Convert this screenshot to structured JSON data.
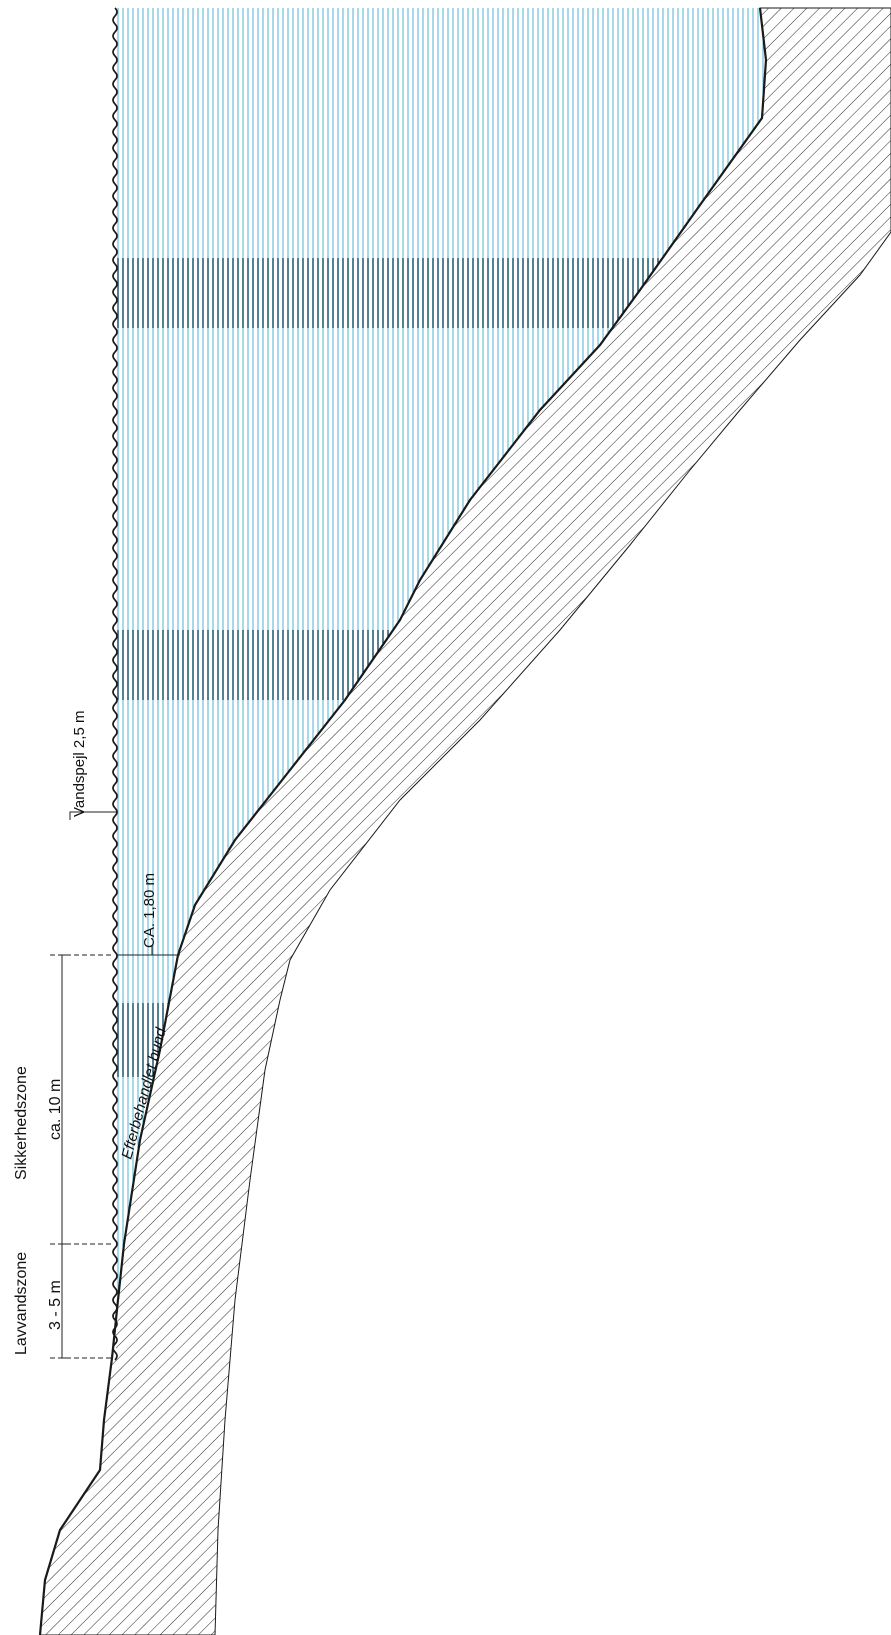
{
  "labels": {
    "water_level": "Vandspejl 2,5 m",
    "depth": "CA. 1,80 m",
    "bottom": "Efterbehandlet bund",
    "safety_zone_name": "Sikkerhedszone",
    "safety_zone_width": "ca. 10 m",
    "shallow_zone_name": "Lavvandszone",
    "shallow_zone_width": "3 - 5 m"
  },
  "colors": {
    "water_light": "#4fb3d4",
    "water_dark": "#0e4a66",
    "water_bg": "#ffffff",
    "terrain_line": "#1a1a1a",
    "hatch": "#2a2a2a"
  }
}
